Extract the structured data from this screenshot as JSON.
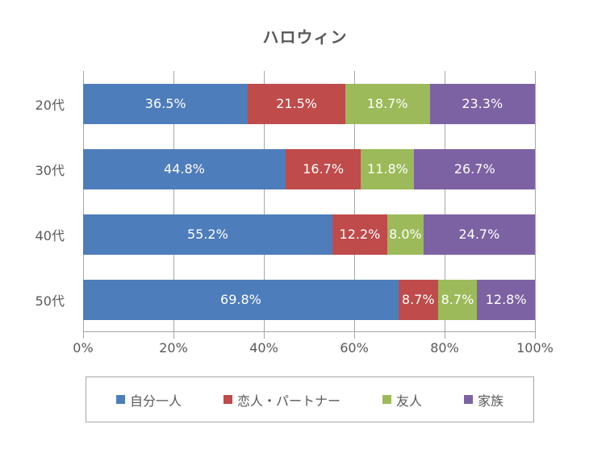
{
  "chart_data": {
    "type": "bar",
    "orientation": "horizontal",
    "stacked": true,
    "title": "ハロウィン",
    "categories": [
      "20代",
      "30代",
      "40代",
      "50代"
    ],
    "series": [
      {
        "name": "自分一人",
        "color": "#4e7dbb",
        "values": [
          36.5,
          44.8,
          55.2,
          69.8
        ]
      },
      {
        "name": "恋人・パートナー",
        "color": "#bf4b4b",
        "values": [
          21.5,
          16.7,
          12.2,
          8.7
        ]
      },
      {
        "name": "友人",
        "color": "#9cba5a",
        "values": [
          18.7,
          11.8,
          8.0,
          8.7
        ]
      },
      {
        "name": "家族",
        "color": "#7d62a3",
        "values": [
          23.3,
          26.7,
          24.7,
          12.8
        ]
      }
    ],
    "xlim": [
      0,
      100
    ],
    "x_tick_labels": [
      "0%",
      "20%",
      "40%",
      "60%",
      "80%",
      "100%"
    ],
    "data_label_suffix": "%",
    "data_label_decimals": 1,
    "data_label_color": "#ffffff",
    "grid": true,
    "grid_color": "#a6a6a6",
    "axis_text_color": "#595959",
    "title_color": "#595959",
    "legend_position": "bottom",
    "legend_border_color": "#a6a6a6"
  }
}
